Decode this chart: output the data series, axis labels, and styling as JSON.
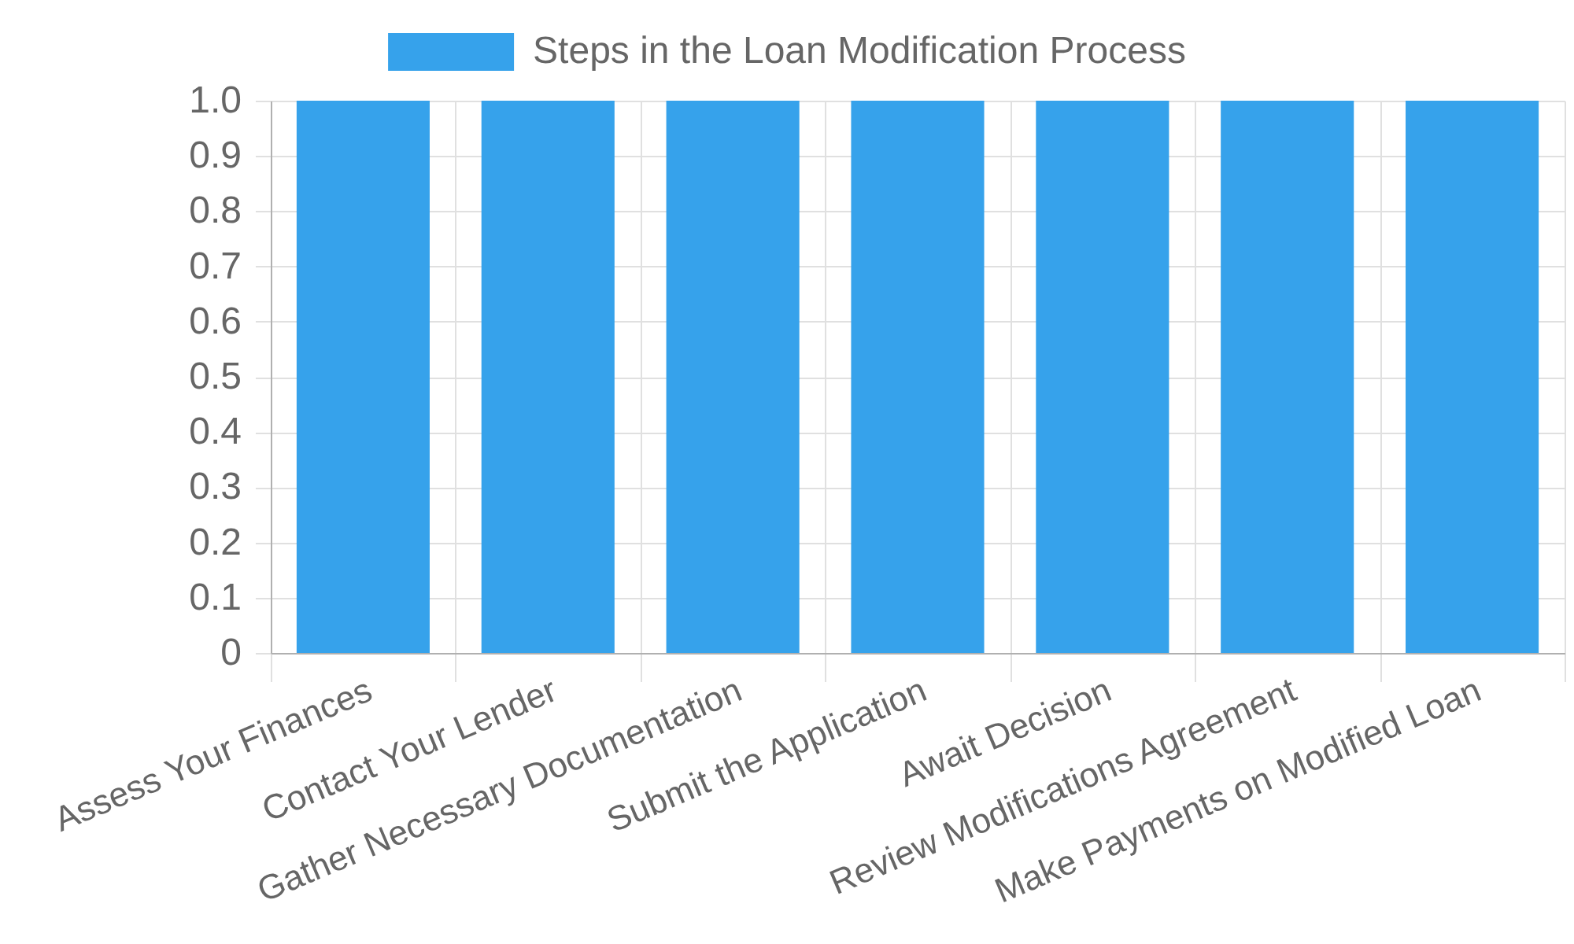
{
  "chart_data": {
    "type": "bar",
    "categories": [
      "Assess Your Finances",
      "Contact Your Lender",
      "Gather Necessary Documentation",
      "Submit the Application",
      "Await Decision",
      "Review Modifications Agreement",
      "Make Payments on Modified Loan"
    ],
    "series": [
      {
        "name": "Steps in the Loan Modification Process",
        "color": "#36a2eb",
        "values": [
          1,
          1,
          1,
          1,
          1,
          1,
          1
        ]
      }
    ],
    "ylim": [
      0,
      1
    ],
    "yticks": [
      0,
      0.1,
      0.2,
      0.3,
      0.4,
      0.5,
      0.6,
      0.7,
      0.8,
      0.9,
      {
        "value": 1,
        "label": "1.0"
      }
    ],
    "grid": true,
    "legend": "top"
  }
}
